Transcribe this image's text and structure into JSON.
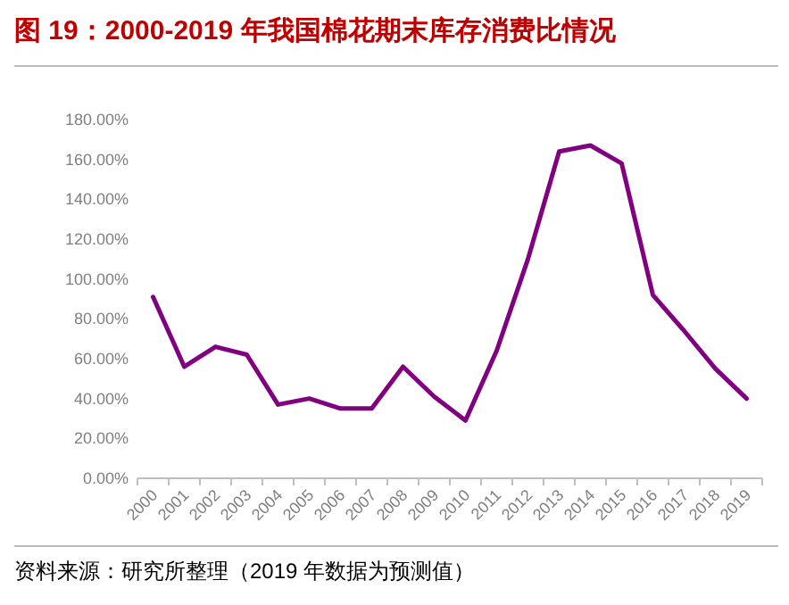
{
  "chart_data": {
    "type": "line",
    "title": "图 19：2000-2019 年我国棉花期末库存消费比情况",
    "categories": [
      "2000",
      "2001",
      "2002",
      "2003",
      "2004",
      "2005",
      "2006",
      "2007",
      "2008",
      "2009",
      "2010",
      "2011",
      "2012",
      "2013",
      "2014",
      "2015",
      "2016",
      "2017",
      "2018",
      "2019"
    ],
    "series": [
      {
        "color": "#800080",
        "values": [
          91,
          56,
          66,
          62,
          37,
          40,
          35,
          35,
          56,
          41,
          29,
          64,
          110,
          164,
          167,
          158,
          92,
          74,
          55,
          40
        ]
      }
    ],
    "ylim": [
      0,
      180
    ],
    "yticks": [
      {
        "value": 0,
        "label": "0.00%"
      },
      {
        "value": 20,
        "label": "20.00%"
      },
      {
        "value": 40,
        "label": "40.00%"
      },
      {
        "value": 60,
        "label": "60.00%"
      },
      {
        "value": 80,
        "label": "80.00%"
      },
      {
        "value": 100,
        "label": "100.00%"
      },
      {
        "value": 120,
        "label": "120.00%"
      },
      {
        "value": 140,
        "label": "140.00%"
      },
      {
        "value": 160,
        "label": "160.00%"
      },
      {
        "value": 180,
        "label": "180.00%"
      }
    ],
    "marker": "none",
    "line_style": "solid",
    "annotations": [
      "资料来源：研究所整理（2019 年数据为预测值）"
    ]
  }
}
